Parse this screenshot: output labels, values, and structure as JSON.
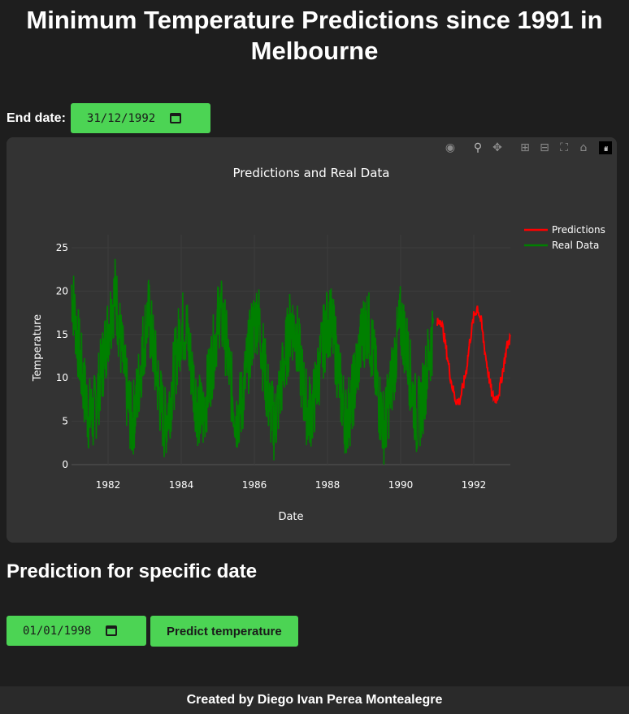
{
  "header": {
    "title": "Minimum Temperature Predictions since 1991 in Melbourne"
  },
  "end_date": {
    "label": "End date:",
    "value": "31/12/1992"
  },
  "modebar": {
    "icons": [
      "camera-icon",
      "zoom-icon",
      "pan-icon",
      "zoom-in-icon",
      "zoom-out-icon",
      "autoscale-icon",
      "reset-axes-icon",
      "plotly-logo-icon"
    ]
  },
  "chart_data": {
    "type": "line",
    "title": "Predictions and Real Data",
    "xlabel": "Date",
    "ylabel": "Temperature",
    "x_ticks": [
      "1982",
      "1984",
      "1986",
      "1988",
      "1990",
      "1992"
    ],
    "y_ticks": [
      "0",
      "5",
      "10",
      "15",
      "20",
      "25"
    ],
    "xlim": [
      1981.0,
      1993.0
    ],
    "ylim": [
      0,
      26.5
    ],
    "grid": true,
    "legend_position": "top-right",
    "series": [
      {
        "name": "Predictions",
        "color": "#ff0000",
        "x": [
          1991.0,
          1991.1,
          1991.2,
          1991.3,
          1991.4,
          1991.5,
          1991.6,
          1991.7,
          1991.8,
          1991.9,
          1992.0,
          1992.1,
          1992.2,
          1992.3,
          1992.4,
          1992.5,
          1992.6,
          1992.7,
          1992.8,
          1992.9,
          1993.0
        ],
        "values": [
          16.2,
          16.8,
          14.5,
          11.8,
          9.2,
          7.5,
          7.2,
          8.8,
          11.0,
          14.5,
          17.0,
          18.2,
          16.5,
          13.2,
          10.5,
          8.0,
          7.5,
          8.5,
          11.0,
          13.5,
          14.8
        ]
      },
      {
        "name": "Real Data",
        "color": "#008000",
        "note_hidden": "",
        "x": [
          1981.0,
          1981.15,
          1981.3,
          1981.45,
          1981.6,
          1981.75,
          1981.9,
          1982.05,
          1982.2,
          1982.35,
          1982.5,
          1982.65,
          1982.8,
          1982.95,
          1983.1,
          1983.25,
          1983.4,
          1983.55,
          1983.7,
          1983.85,
          1984.0,
          1984.15,
          1984.3,
          1984.45,
          1984.6,
          1984.75,
          1984.9,
          1985.05,
          1985.2,
          1985.35,
          1985.5,
          1985.65,
          1985.8,
          1985.95,
          1986.1,
          1986.25,
          1986.4,
          1986.55,
          1986.7,
          1986.85,
          1987.0,
          1987.15,
          1987.3,
          1987.45,
          1987.6,
          1987.75,
          1987.9,
          1988.05,
          1988.2,
          1988.35,
          1988.5,
          1988.65,
          1988.8,
          1988.95,
          1989.1,
          1989.25,
          1989.4,
          1989.55,
          1989.7,
          1989.85,
          1990.0,
          1990.15,
          1990.3,
          1990.45,
          1990.6,
          1990.75,
          1990.9
        ],
        "values": [
          20.5,
          15.0,
          10.0,
          6.0,
          5.5,
          9.0,
          13.0,
          17.0,
          20.0,
          14.0,
          8.5,
          4.5,
          8.0,
          13.5,
          17.5,
          13.0,
          8.0,
          4.5,
          7.5,
          12.0,
          16.0,
          15.5,
          10.5,
          6.5,
          5.5,
          9.5,
          13.5,
          18.0,
          15.0,
          9.5,
          5.5,
          7.0,
          11.5,
          15.5,
          17.5,
          12.0,
          7.0,
          4.5,
          8.5,
          12.5,
          16.5,
          15.0,
          10.0,
          6.0,
          6.5,
          10.5,
          14.5,
          17.0,
          14.0,
          9.0,
          5.0,
          7.0,
          11.0,
          15.0,
          16.5,
          12.5,
          7.5,
          4.0,
          8.0,
          12.5,
          16.5,
          14.0,
          9.0,
          5.0,
          7.5,
          12.0,
          15.5
        ]
      }
    ]
  },
  "prediction": {
    "title": "Prediction for specific date",
    "date_value": "01/01/1998",
    "button_label": "Predict temperature"
  },
  "footer": {
    "text": "Created by Diego Ivan Perea Montealegre"
  }
}
